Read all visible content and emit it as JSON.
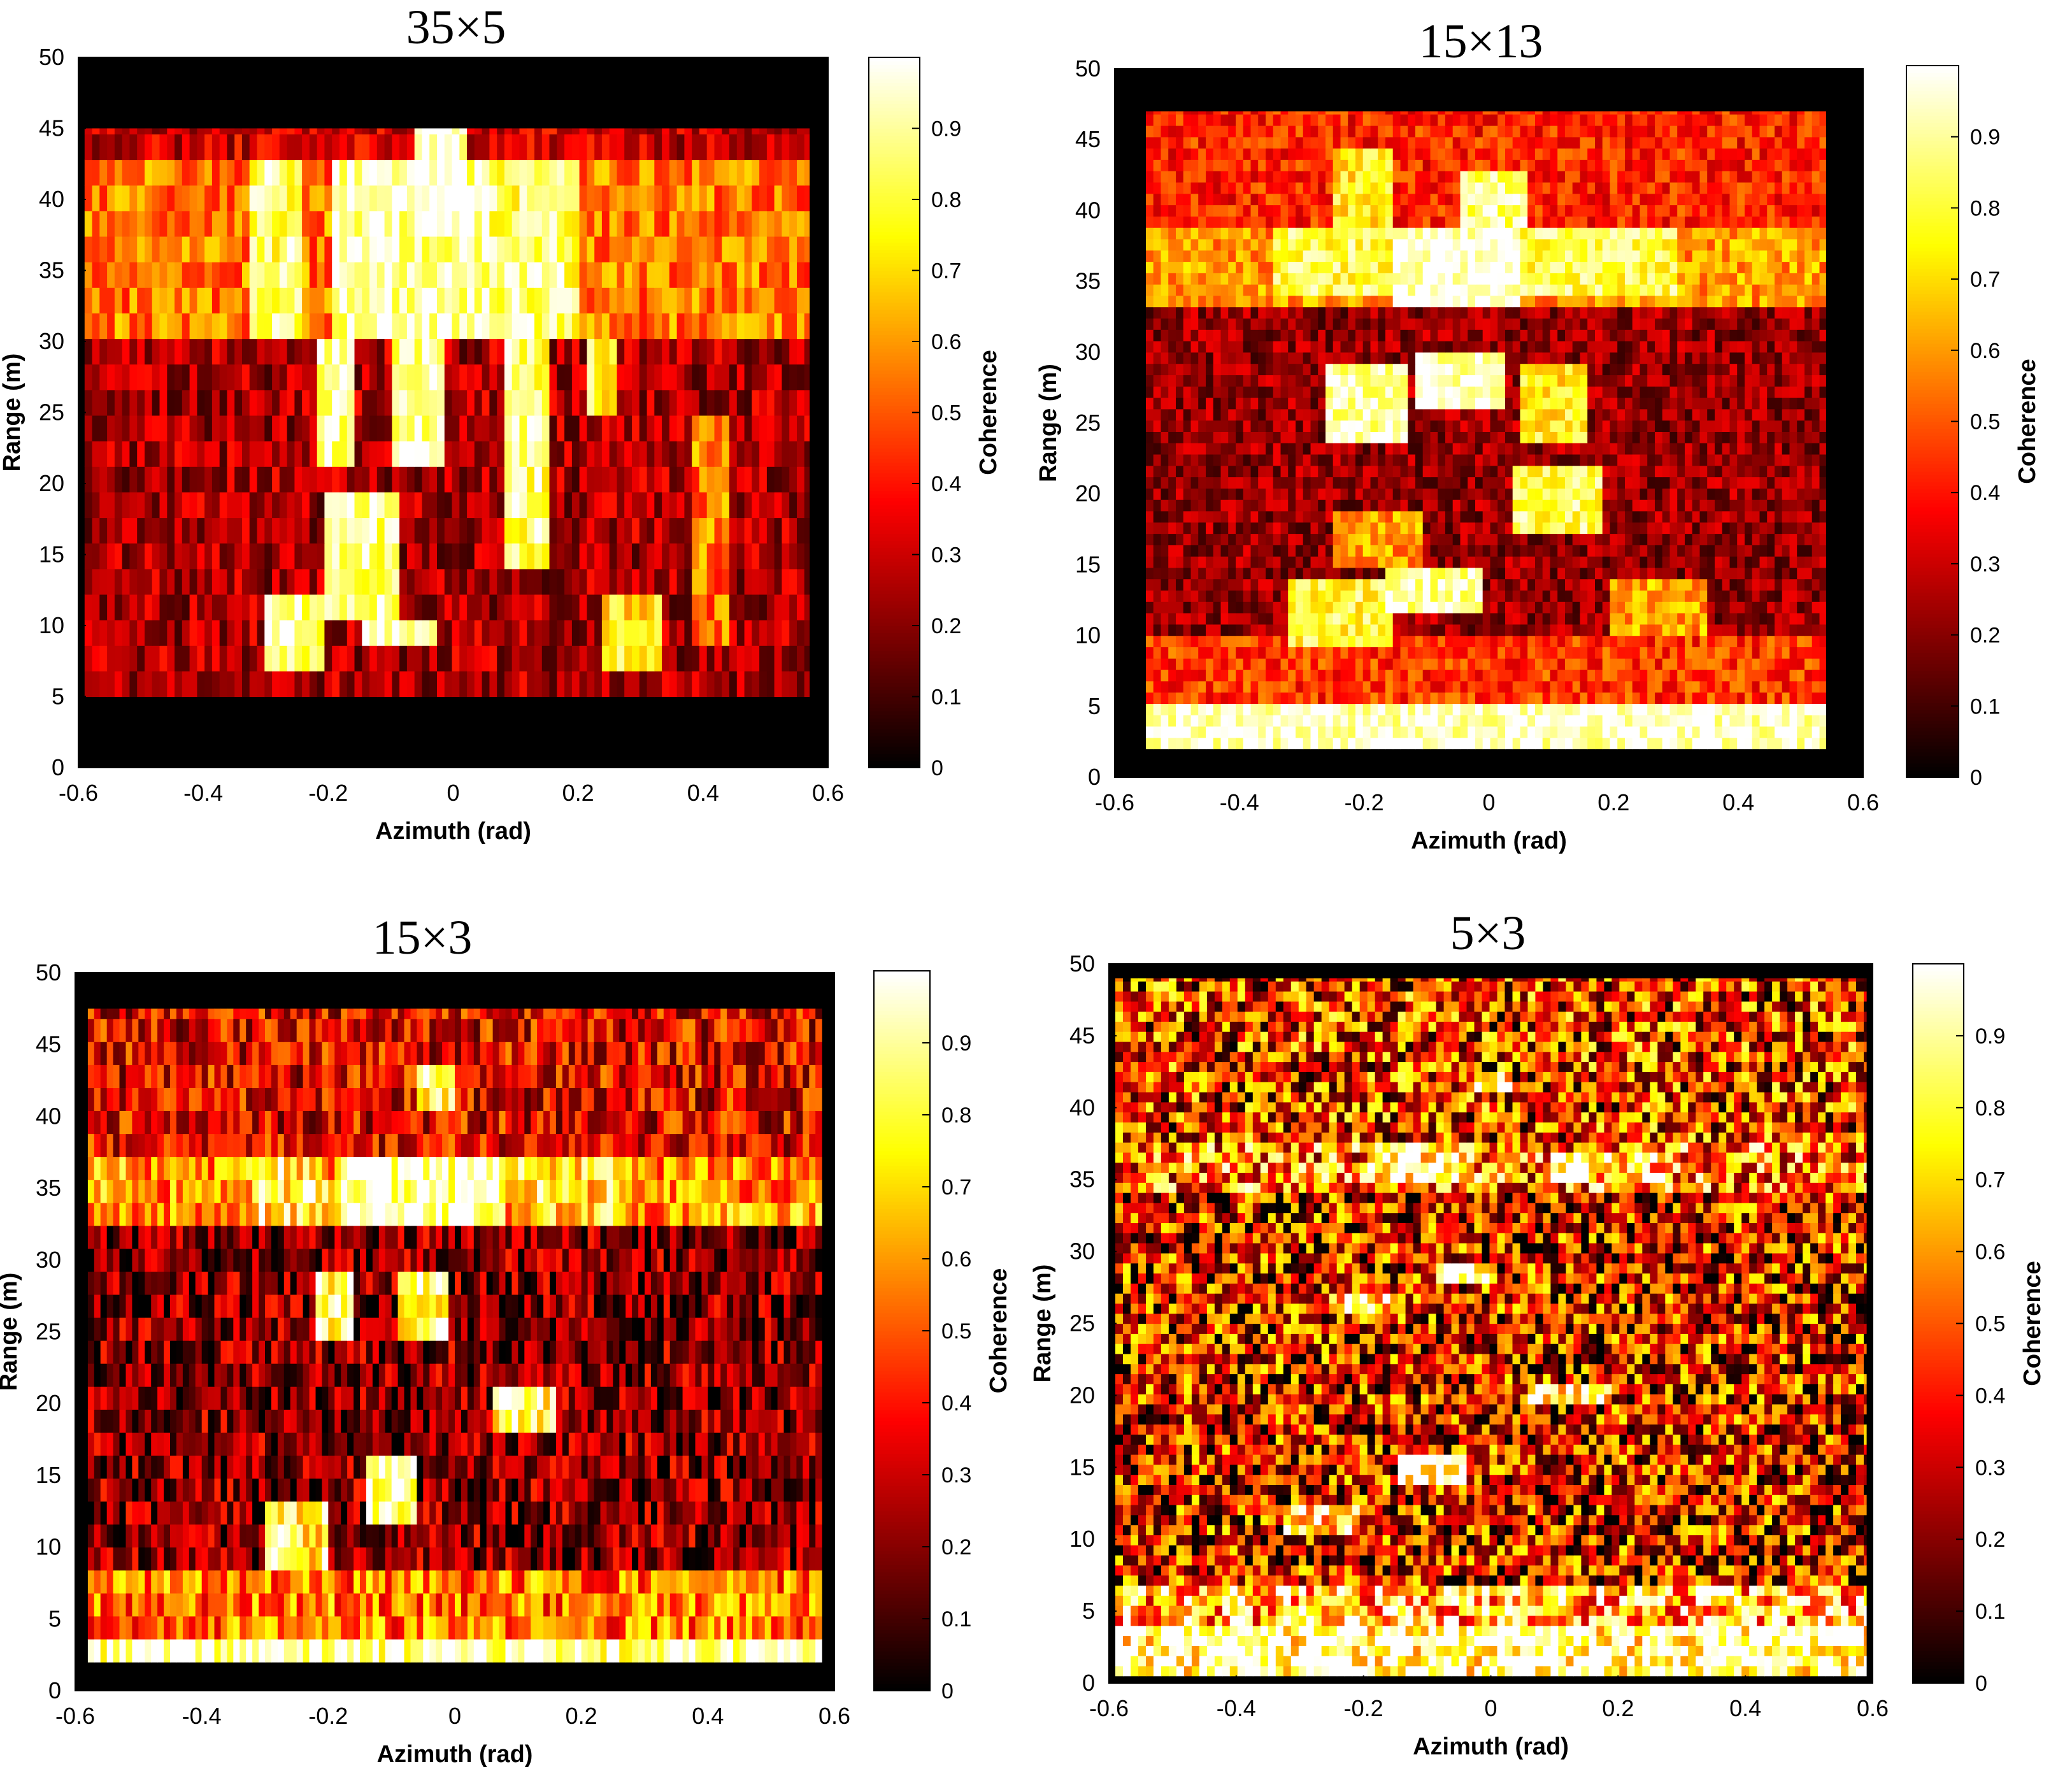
{
  "figure": {
    "panels": [
      {
        "title": "35×5",
        "xlabel": "Azimuth (rad)",
        "ylabel": "Range (m)",
        "colorbar_label": "Coherence",
        "xticks": [
          "-0.6",
          "-0.4",
          "-0.2",
          "0",
          "0.2",
          "0.4",
          "0.6"
        ],
        "yticks": [
          "0",
          "5",
          "10",
          "15",
          "20",
          "25",
          "30",
          "35",
          "40",
          "45",
          "50"
        ],
        "cbticks": [
          "0",
          "0.1",
          "0.2",
          "0.3",
          "0.4",
          "0.5",
          "0.6",
          "0.7",
          "0.8",
          "0.9"
        ]
      },
      {
        "title": "15×13",
        "xlabel": "Azimuth (rad)",
        "ylabel": "Range (m)",
        "colorbar_label": "Coherence",
        "xticks": [
          "-0.6",
          "-0.4",
          "-0.2",
          "0",
          "0.2",
          "0.4",
          "0.6"
        ],
        "yticks": [
          "0",
          "5",
          "10",
          "15",
          "20",
          "25",
          "30",
          "35",
          "40",
          "45",
          "50"
        ],
        "cbticks": [
          "0",
          "0.1",
          "0.2",
          "0.3",
          "0.4",
          "0.5",
          "0.6",
          "0.7",
          "0.8",
          "0.9"
        ]
      },
      {
        "title": "15×3",
        "xlabel": "Azimuth (rad)",
        "ylabel": "Range (m)",
        "colorbar_label": "Coherence",
        "xticks": [
          "-0.6",
          "-0.4",
          "-0.2",
          "0",
          "0.2",
          "0.4",
          "0.6"
        ],
        "yticks": [
          "0",
          "5",
          "10",
          "15",
          "20",
          "25",
          "30",
          "35",
          "40",
          "45",
          "50"
        ],
        "cbticks": [
          "0",
          "0.1",
          "0.2",
          "0.3",
          "0.4",
          "0.5",
          "0.6",
          "0.7",
          "0.8",
          "0.9"
        ]
      },
      {
        "title": "5×3",
        "xlabel": "Azimuth (rad)",
        "ylabel": "Range (m)",
        "colorbar_label": "Coherence",
        "xticks": [
          "-0.6",
          "-0.4",
          "-0.2",
          "0",
          "0.2",
          "0.4",
          "0.6"
        ],
        "yticks": [
          "0",
          "5",
          "10",
          "15",
          "20",
          "25",
          "30",
          "35",
          "40",
          "45",
          "50"
        ],
        "cbticks": [
          "0",
          "0.1",
          "0.2",
          "0.3",
          "0.4",
          "0.5",
          "0.6",
          "0.7",
          "0.8",
          "0.9"
        ]
      }
    ]
  },
  "chart_data": [
    {
      "type": "heatmap",
      "title": "35×5",
      "xlabel": "Azimuth (rad)",
      "ylabel": "Range (m)",
      "colorbar_label": "Coherence",
      "colormap": "hot",
      "xlim": [
        -0.6,
        0.6
      ],
      "ylim": [
        0,
        50
      ],
      "clim": [
        0,
        1
      ],
      "data_extent": {
        "azimuth": [
          -0.59,
          0.57
        ],
        "range": [
          5,
          45
        ]
      },
      "texture": {
        "seed": 11,
        "noise": 0.16,
        "cell_az": 0.012,
        "cell_range": 1.8
      },
      "bands": [
        {
          "range": [
            30,
            42
          ],
          "azimuth": [
            -0.59,
            0.57
          ],
          "coherence": 0.55
        },
        {
          "range": [
            42,
            45
          ],
          "azimuth": [
            -0.59,
            0.57
          ],
          "coherence": 0.3
        },
        {
          "range": [
            5,
            30
          ],
          "azimuth": [
            -0.59,
            0.57
          ],
          "coherence": 0.25
        }
      ],
      "bright_regions": [
        {
          "azimuth": [
            -0.33,
            -0.24
          ],
          "range": [
            31,
            43
          ],
          "coherence": 0.85
        },
        {
          "azimuth": [
            -0.19,
            0.06
          ],
          "range": [
            31,
            42
          ],
          "coherence": 0.93
        },
        {
          "azimuth": [
            -0.06,
            0.02
          ],
          "range": [
            38,
            45
          ],
          "coherence": 1.0
        },
        {
          "azimuth": [
            0.06,
            0.2
          ],
          "range": [
            31,
            42
          ],
          "coherence": 0.85
        },
        {
          "azimuth": [
            -0.22,
            -0.16
          ],
          "range": [
            21,
            31
          ],
          "coherence": 0.9
        },
        {
          "azimuth": [
            -0.1,
            -0.01
          ],
          "range": [
            22,
            30
          ],
          "coherence": 0.93
        },
        {
          "azimuth": [
            0.08,
            0.16
          ],
          "range": [
            14,
            31
          ],
          "coherence": 0.86
        },
        {
          "azimuth": [
            0.22,
            0.26
          ],
          "range": [
            24,
            30
          ],
          "coherence": 0.78
        },
        {
          "azimuth": [
            -0.21,
            -0.08
          ],
          "range": [
            10,
            20
          ],
          "coherence": 0.9
        },
        {
          "azimuth": [
            -0.14,
            -0.03
          ],
          "range": [
            8,
            11
          ],
          "coherence": 0.98
        },
        {
          "azimuth": [
            -0.3,
            -0.2
          ],
          "range": [
            6,
            12
          ],
          "coherence": 0.88
        },
        {
          "azimuth": [
            0.24,
            0.34
          ],
          "range": [
            6,
            12
          ],
          "coherence": 0.75
        },
        {
          "azimuth": [
            0.38,
            0.44
          ],
          "range": [
            9,
            25
          ],
          "coherence": 0.55
        }
      ]
    },
    {
      "type": "heatmap",
      "title": "15×13",
      "xlabel": "Azimuth (rad)",
      "ylabel": "Range (m)",
      "colorbar_label": "Coherence",
      "colormap": "hot",
      "xlim": [
        -0.6,
        0.6
      ],
      "ylim": [
        0,
        50
      ],
      "clim": [
        0,
        1
      ],
      "data_extent": {
        "azimuth": [
          -0.55,
          0.54
        ],
        "range": [
          2,
          47
        ]
      },
      "texture": {
        "seed": 23,
        "noise": 0.14,
        "cell_az": 0.012,
        "cell_range": 0.8
      },
      "bands": [
        {
          "range": [
            33,
            39
          ],
          "azimuth": [
            -0.55,
            0.54
          ],
          "coherence": 0.6
        },
        {
          "range": [
            39,
            47
          ],
          "azimuth": [
            -0.55,
            0.54
          ],
          "coherence": 0.42
        },
        {
          "range": [
            10,
            33
          ],
          "azimuth": [
            -0.55,
            0.54
          ],
          "coherence": 0.22
        },
        {
          "range": [
            5,
            10
          ],
          "azimuth": [
            -0.55,
            0.54
          ],
          "coherence": 0.45
        },
        {
          "range": [
            2,
            5
          ],
          "azimuth": [
            -0.55,
            0.54
          ],
          "coherence": 0.96
        }
      ],
      "bright_regions": [
        {
          "azimuth": [
            -0.35,
            0.3
          ],
          "range": [
            34,
            39
          ],
          "coherence": 0.82
        },
        {
          "azimuth": [
            -0.15,
            0.05
          ],
          "range": [
            33,
            39
          ],
          "coherence": 0.98
        },
        {
          "azimuth": [
            -0.25,
            -0.15
          ],
          "range": [
            38,
            44
          ],
          "coherence": 0.75
        },
        {
          "azimuth": [
            -0.05,
            0.06
          ],
          "range": [
            39,
            43
          ],
          "coherence": 0.88
        },
        {
          "azimuth": [
            -0.26,
            -0.13
          ],
          "range": [
            24,
            29
          ],
          "coherence": 0.93
        },
        {
          "azimuth": [
            -0.12,
            0.03
          ],
          "range": [
            26,
            30
          ],
          "coherence": 0.95
        },
        {
          "azimuth": [
            0.05,
            0.16
          ],
          "range": [
            24,
            29
          ],
          "coherence": 0.75
        },
        {
          "azimuth": [
            0.04,
            0.18
          ],
          "range": [
            17,
            22
          ],
          "coherence": 0.83
        },
        {
          "azimuth": [
            -0.25,
            -0.1
          ],
          "range": [
            15,
            19
          ],
          "coherence": 0.6
        },
        {
          "azimuth": [
            -0.32,
            -0.15
          ],
          "range": [
            9,
            14
          ],
          "coherence": 0.8
        },
        {
          "azimuth": [
            -0.16,
            -0.01
          ],
          "range": [
            12,
            15
          ],
          "coherence": 0.92
        },
        {
          "azimuth": [
            0.2,
            0.35
          ],
          "range": [
            10,
            14
          ],
          "coherence": 0.62
        }
      ]
    },
    {
      "type": "heatmap",
      "title": "15×3",
      "xlabel": "Azimuth (rad)",
      "ylabel": "Range (m)",
      "colorbar_label": "Coherence",
      "colormap": "hot",
      "xlim": [
        -0.6,
        0.6
      ],
      "ylim": [
        0,
        50
      ],
      "clim": [
        0,
        1
      ],
      "data_extent": {
        "azimuth": [
          -0.58,
          0.58
        ],
        "range": [
          2,
          47.5
        ]
      },
      "texture": {
        "seed": 37,
        "noise": 0.24,
        "cell_az": 0.01,
        "cell_range": 1.6
      },
      "bands": [
        {
          "range": [
            33,
            38
          ],
          "azimuth": [
            -0.58,
            0.58
          ],
          "coherence": 0.6
        },
        {
          "range": [
            38,
            47.5
          ],
          "azimuth": [
            -0.58,
            0.58
          ],
          "coherence": 0.35
        },
        {
          "range": [
            9,
            33
          ],
          "azimuth": [
            -0.58,
            0.58
          ],
          "coherence": 0.2
        },
        {
          "range": [
            4,
            9
          ],
          "azimuth": [
            -0.58,
            0.58
          ],
          "coherence": 0.55
        },
        {
          "range": [
            2,
            4
          ],
          "azimuth": [
            -0.58,
            0.58
          ],
          "coherence": 0.95
        }
      ],
      "bright_regions": [
        {
          "azimuth": [
            -0.18,
            0.08
          ],
          "range": [
            33,
            38
          ],
          "coherence": 0.97
        },
        {
          "azimuth": [
            -0.32,
            -0.2
          ],
          "range": [
            33,
            38
          ],
          "coherence": 0.78
        },
        {
          "azimuth": [
            0.1,
            0.26
          ],
          "range": [
            33,
            38
          ],
          "coherence": 0.75
        },
        {
          "azimuth": [
            -0.22,
            -0.16
          ],
          "range": [
            24,
            29
          ],
          "coherence": 0.88
        },
        {
          "azimuth": [
            -0.09,
            -0.01
          ],
          "range": [
            25,
            30
          ],
          "coherence": 0.85
        },
        {
          "azimuth": [
            0.06,
            0.16
          ],
          "range": [
            18,
            22
          ],
          "coherence": 0.82
        },
        {
          "azimuth": [
            -0.14,
            -0.06
          ],
          "range": [
            11,
            16
          ],
          "coherence": 0.95
        },
        {
          "azimuth": [
            -0.3,
            -0.2
          ],
          "range": [
            9,
            14
          ],
          "coherence": 0.8
        },
        {
          "azimuth": [
            -0.06,
            0.0
          ],
          "range": [
            40,
            44
          ],
          "coherence": 0.8
        }
      ]
    },
    {
      "type": "heatmap",
      "title": "5×3",
      "xlabel": "Azimuth (rad)",
      "ylabel": "Range (m)",
      "colorbar_label": "Coherence",
      "colormap": "hot",
      "xlim": [
        -0.6,
        0.6
      ],
      "ylim": [
        0,
        50
      ],
      "clim": [
        0,
        1
      ],
      "data_extent": {
        "azimuth": [
          -0.59,
          0.59
        ],
        "range": [
          0.5,
          49
        ]
      },
      "texture": {
        "seed": 59,
        "noise": 0.42,
        "cell_az": 0.012,
        "cell_range": 0.7
      },
      "bands": [
        {
          "range": [
            34,
            37.5
          ],
          "azimuth": [
            -0.59,
            0.59
          ],
          "coherence": 0.55
        },
        {
          "range": [
            37.5,
            49
          ],
          "azimuth": [
            -0.59,
            0.59
          ],
          "coherence": 0.42
        },
        {
          "range": [
            7,
            34
          ],
          "azimuth": [
            -0.59,
            0.59
          ],
          "coherence": 0.35
        },
        {
          "range": [
            4,
            7
          ],
          "azimuth": [
            -0.59,
            0.59
          ],
          "coherence": 0.7
        },
        {
          "range": [
            0.5,
            4
          ],
          "azimuth": [
            -0.59,
            0.59
          ],
          "coherence": 0.97
        }
      ],
      "bright_regions": [
        {
          "azimuth": [
            -0.19,
            -0.02
          ],
          "range": [
            35,
            37.5
          ],
          "coherence": 0.95
        },
        {
          "azimuth": [
            -0.15,
            -0.04
          ],
          "range": [
            14,
            16
          ],
          "coherence": 0.95
        },
        {
          "azimuth": [
            0.06,
            0.19
          ],
          "range": [
            19.5,
            21
          ],
          "coherence": 0.92
        },
        {
          "azimuth": [
            -0.09,
            0.0
          ],
          "range": [
            27.5,
            29
          ],
          "coherence": 0.93
        },
        {
          "azimuth": [
            -0.25,
            -0.13
          ],
          "range": [
            25.5,
            27
          ],
          "coherence": 0.85
        },
        {
          "azimuth": [
            -0.32,
            -0.2
          ],
          "range": [
            10.5,
            12.5
          ],
          "coherence": 0.85
        },
        {
          "azimuth": [
            -0.02,
            0.04
          ],
          "range": [
            41,
            42.5
          ],
          "coherence": 0.9
        },
        {
          "azimuth": [
            0.09,
            0.28
          ],
          "range": [
            35,
            37
          ],
          "coherence": 0.8
        }
      ]
    }
  ]
}
